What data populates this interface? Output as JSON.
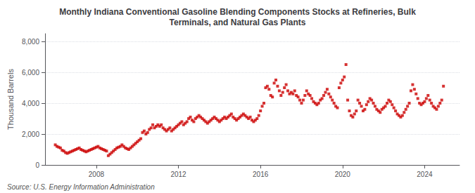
{
  "chart_data": {
    "type": "scatter",
    "title": "Monthly Indiana Conventional Gasoline Blending Components Stocks at Refineries, Bulk\nTerminals, and Natural Gas Plants",
    "ylabel": "Thousand Barrels",
    "annotations": [
      "Source: U.S. Energy Information Administration"
    ],
    "color": "#cc0000",
    "marker": "square",
    "grid": true,
    "xlim": [
      2005.5,
      2025.7
    ],
    "xticks": [
      2008,
      2012,
      2016,
      2020,
      2024
    ],
    "ylim": [
      0,
      8500
    ],
    "yticks": [
      0,
      {
        "value": 2000,
        "label": "2,000"
      },
      {
        "value": 4000,
        "label": "4,000"
      },
      {
        "value": 6000,
        "label": "6,000"
      },
      {
        "value": 8000,
        "label": "8,000"
      }
    ],
    "x": [
      2006.0,
      2006.083,
      2006.167,
      2006.25,
      2006.333,
      2006.417,
      2006.5,
      2006.583,
      2006.667,
      2006.75,
      2006.833,
      2006.917,
      2007.0,
      2007.083,
      2007.167,
      2007.25,
      2007.333,
      2007.417,
      2007.5,
      2007.583,
      2007.667,
      2007.75,
      2007.833,
      2007.917,
      2008.0,
      2008.083,
      2008.167,
      2008.25,
      2008.333,
      2008.417,
      2008.5,
      2008.583,
      2008.667,
      2008.75,
      2008.833,
      2008.917,
      2009.0,
      2009.083,
      2009.167,
      2009.25,
      2009.333,
      2009.417,
      2009.5,
      2009.583,
      2009.667,
      2009.75,
      2009.833,
      2009.917,
      2010.0,
      2010.083,
      2010.167,
      2010.25,
      2010.333,
      2010.417,
      2010.5,
      2010.583,
      2010.667,
      2010.75,
      2010.833,
      2010.917,
      2011.0,
      2011.083,
      2011.167,
      2011.25,
      2011.333,
      2011.417,
      2011.5,
      2011.583,
      2011.667,
      2011.75,
      2011.833,
      2011.917,
      2012.0,
      2012.083,
      2012.167,
      2012.25,
      2012.333,
      2012.417,
      2012.5,
      2012.583,
      2012.667,
      2012.75,
      2012.833,
      2012.917,
      2013.0,
      2013.083,
      2013.167,
      2013.25,
      2013.333,
      2013.417,
      2013.5,
      2013.583,
      2013.667,
      2013.75,
      2013.833,
      2013.917,
      2014.0,
      2014.083,
      2014.167,
      2014.25,
      2014.333,
      2014.417,
      2014.5,
      2014.583,
      2014.667,
      2014.75,
      2014.833,
      2014.917,
      2015.0,
      2015.083,
      2015.167,
      2015.25,
      2015.333,
      2015.417,
      2015.5,
      2015.583,
      2015.667,
      2015.75,
      2015.833,
      2015.917,
      2016.0,
      2016.083,
      2016.167,
      2016.25,
      2016.333,
      2016.417,
      2016.5,
      2016.583,
      2016.667,
      2016.75,
      2016.833,
      2016.917,
      2017.0,
      2017.083,
      2017.167,
      2017.25,
      2017.333,
      2017.417,
      2017.5,
      2017.583,
      2017.667,
      2017.75,
      2017.833,
      2017.917,
      2018.0,
      2018.083,
      2018.167,
      2018.25,
      2018.333,
      2018.417,
      2018.5,
      2018.583,
      2018.667,
      2018.75,
      2018.833,
      2018.917,
      2019.0,
      2019.083,
      2019.167,
      2019.25,
      2019.333,
      2019.417,
      2019.5,
      2019.583,
      2019.667,
      2019.75,
      2019.833,
      2019.917,
      2020.0,
      2020.083,
      2020.167,
      2020.25,
      2020.333,
      2020.417,
      2020.5,
      2020.583,
      2020.667,
      2020.75,
      2020.833,
      2020.917,
      2021.0,
      2021.083,
      2021.167,
      2021.25,
      2021.333,
      2021.417,
      2021.5,
      2021.583,
      2021.667,
      2021.75,
      2021.833,
      2021.917,
      2022.0,
      2022.083,
      2022.167,
      2022.25,
      2022.333,
      2022.417,
      2022.5,
      2022.583,
      2022.667,
      2022.75,
      2022.833,
      2022.917,
      2023.0,
      2023.083,
      2023.167,
      2023.25,
      2023.333,
      2023.417,
      2023.5,
      2023.583,
      2023.667,
      2023.75,
      2023.833,
      2023.917,
      2024.0,
      2024.083,
      2024.167,
      2024.25,
      2024.333,
      2024.417,
      2024.5,
      2024.583,
      2024.667,
      2024.75,
      2024.833,
      2024.917
    ],
    "values": [
      1300,
      1200,
      1150,
      1100,
      950,
      900,
      800,
      750,
      800,
      850,
      900,
      950,
      1000,
      1050,
      1100,
      1000,
      950,
      900,
      850,
      900,
      950,
      1000,
      1050,
      1100,
      1150,
      1200,
      1100,
      1050,
      1000,
      950,
      900,
      600,
      700,
      800,
      900,
      1000,
      1100,
      1150,
      1200,
      1300,
      1200,
      1100,
      1050,
      1000,
      1100,
      1200,
      1300,
      1400,
      1500,
      1600,
      1700,
      2100,
      2200,
      2000,
      2100,
      2300,
      2400,
      2600,
      2400,
      2500,
      2600,
      2500,
      2600,
      2400,
      2300,
      2200,
      2300,
      2400,
      2200,
      2300,
      2400,
      2500,
      2600,
      2700,
      2800,
      2600,
      2700,
      2800,
      3000,
      3100,
      2900,
      2800,
      3000,
      3100,
      3200,
      3100,
      3000,
      2900,
      2800,
      2700,
      2800,
      2900,
      3000,
      3100,
      3000,
      2900,
      2800,
      2900,
      3000,
      3100,
      3000,
      3100,
      3200,
      3300,
      3100,
      3000,
      2900,
      3000,
      3100,
      3200,
      3300,
      3200,
      3100,
      3000,
      3100,
      2900,
      2800,
      2900,
      3000,
      3200,
      3500,
      3800,
      4000,
      5000,
      5100,
      4900,
      4500,
      4400,
      5300,
      5500,
      5100,
      4800,
      4500,
      4700,
      5000,
      5200,
      4800,
      4600,
      4700,
      4600,
      4800,
      4500,
      4400,
      4200,
      4000,
      4200,
      4500,
      4800,
      4600,
      4500,
      4300,
      4100,
      4000,
      3900,
      4000,
      4200,
      4300,
      4500,
      4700,
      4900,
      4600,
      4400,
      4200,
      4000,
      3800,
      3700,
      5000,
      5300,
      5500,
      5700,
      6500,
      4200,
      3500,
      3200,
      3100,
      3300,
      3500,
      4200,
      4000,
      3800,
      3500,
      3600,
      3900,
      4100,
      4300,
      4200,
      4000,
      3800,
      3600,
      3500,
      3400,
      3600,
      3700,
      3800,
      4000,
      4200,
      4100,
      3900,
      3700,
      3500,
      3300,
      3200,
      3100,
      3200,
      3400,
      3600,
      3800,
      4000,
      4800,
      5200,
      4900,
      4600,
      4300,
      4000,
      3900,
      4000,
      4100,
      4300,
      4500,
      4200,
      4000,
      3800,
      3700,
      3600,
      3800,
      4000,
      4200,
      5100
    ]
  }
}
